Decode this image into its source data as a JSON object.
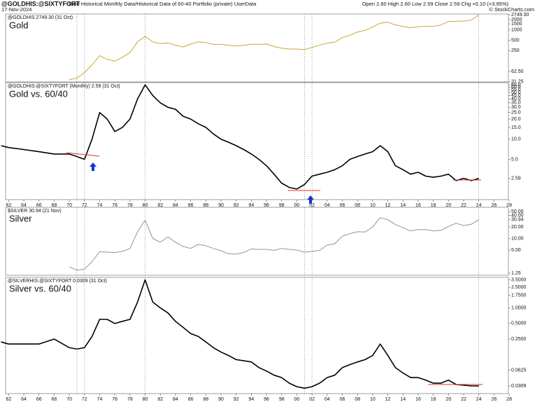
{
  "header": {
    "symbol": "@GOLDHIS:@SIXTYFORT",
    "description": "Gold Historical Monthly Data/Historical Data of 60-40 Portfolio (private) UserData",
    "date": "17-Nov-2024",
    "quote": "Open 2.60 High 2.60 Low 2.59 Close 2.59 Chg +0.10 (+3.95%)",
    "credit": "© StockCharts.com"
  },
  "vlines": [
    1971,
    1972,
    1980,
    2001,
    2002,
    2024
  ],
  "chart_data": [
    {
      "type": "line",
      "legend": "@GOLDHIS 2749.30 (31 Oct)",
      "label": "Gold",
      "log_scale": true,
      "xlim": [
        1961.6,
        2027.9
      ],
      "ylim": [
        31,
        2900
      ],
      "yticks": [
        {
          "value": 2749.3,
          "label": "2749.30"
        },
        2000,
        1500,
        1000,
        500,
        250,
        {
          "value": 62.5,
          "label": "62.50"
        },
        31.25
      ],
      "x": [
        1970,
        1971,
        1972,
        1973,
        1974,
        1975,
        1976,
        1977,
        1978,
        1979,
        1980,
        1981,
        1982,
        1983,
        1984,
        1985,
        1986,
        1987,
        1988,
        1989,
        1990,
        1991,
        1992,
        1993,
        1994,
        1995,
        1996,
        1997,
        1998,
        1999,
        2000,
        2001,
        2002,
        2003,
        2004,
        2005,
        2006,
        2007,
        2008,
        2009,
        2010,
        2011,
        2012,
        2013,
        2014,
        2015,
        2016,
        2017,
        2018,
        2019,
        2020,
        2021,
        2022,
        2023,
        2024
      ],
      "series": [
        {
          "name": "Gold",
          "color": "#c9a43e",
          "values": [
            36,
            40,
            58,
            97,
            180,
            140,
            125,
            160,
            220,
            450,
            650,
            450,
            400,
            420,
            360,
            320,
            390,
            450,
            430,
            380,
            380,
            360,
            340,
            360,
            385,
            385,
            390,
            330,
            295,
            280,
            280,
            270,
            310,
            365,
            410,
            445,
            600,
            700,
            870,
            970,
            1225,
            1570,
            1670,
            1400,
            1265,
            1160,
            1250,
            1260,
            1270,
            1390,
            1770,
            1800,
            1800,
            1940,
            2749.3
          ]
        }
      ]
    },
    {
      "type": "line",
      "legend": "@GOLDHIS:@SIXTYFORT (Monthly) 2.59 (31 Oct)",
      "label": "Gold vs. 60/40",
      "log_scale": true,
      "xlim": [
        1961.6,
        2027.9
      ],
      "ylim": [
        1.25,
        70
      ],
      "yticks": [
        {
          "value": 65,
          "label": "65.0"
        },
        {
          "value": 60,
          "label": "60.0"
        },
        {
          "value": 55,
          "label": "55.0"
        },
        {
          "value": 50,
          "label": "50.0"
        },
        {
          "value": 45,
          "label": "45.0"
        },
        {
          "value": 40,
          "label": "40.0"
        },
        {
          "value": 35,
          "label": "35.0"
        },
        {
          "value": 30,
          "label": "30.0"
        },
        {
          "value": 25,
          "label": "25.0"
        },
        {
          "value": 20,
          "label": "20.0"
        },
        {
          "value": 15,
          "label": "15.0"
        },
        {
          "value": 10,
          "label": "10.0"
        },
        {
          "value": 5,
          "label": "5.0"
        },
        2.59
      ],
      "xticks": [
        {
          "value": 1962,
          "label": "62"
        },
        {
          "value": 1964,
          "label": "64"
        },
        {
          "value": 1966,
          "label": "66"
        },
        {
          "value": 1968,
          "label": "68"
        },
        {
          "value": 1970,
          "label": "70"
        },
        {
          "value": 1972,
          "label": "72"
        },
        {
          "value": 1974,
          "label": "74"
        },
        {
          "value": 1976,
          "label": "76"
        },
        {
          "value": 1978,
          "label": "78"
        },
        {
          "value": 1980,
          "label": "80"
        },
        {
          "value": 1982,
          "label": "82"
        },
        {
          "value": 1984,
          "label": "84"
        },
        {
          "value": 1986,
          "label": "86"
        },
        {
          "value": 1988,
          "label": "88"
        },
        {
          "value": 1990,
          "label": "90"
        },
        {
          "value": 1992,
          "label": "92"
        },
        {
          "value": 1994,
          "label": "94"
        },
        {
          "value": 1996,
          "label": "96"
        },
        {
          "value": 1998,
          "label": "98"
        },
        {
          "value": 2000,
          "label": "00"
        },
        {
          "value": 2002,
          "label": "02"
        },
        {
          "value": 2004,
          "label": "04"
        },
        {
          "value": 2006,
          "label": "06"
        },
        {
          "value": 2008,
          "label": "08"
        },
        {
          "value": 2010,
          "label": "10"
        },
        {
          "value": 2012,
          "label": "12"
        },
        {
          "value": 2014,
          "label": "14"
        },
        {
          "value": 2016,
          "label": "16"
        },
        {
          "value": 2018,
          "label": "18"
        },
        {
          "value": 2020,
          "label": "20"
        },
        {
          "value": 2022,
          "label": "22"
        },
        {
          "value": 2024,
          "label": "24"
        },
        {
          "value": 2026,
          "label": "26"
        },
        {
          "value": 2028,
          "label": "28"
        }
      ],
      "x": [
        1961,
        1962,
        1964,
        1966,
        1968,
        1970,
        1971,
        1972,
        1973,
        1974,
        1975,
        1976,
        1977,
        1978,
        1979,
        1980,
        1981,
        1982,
        1983,
        1984,
        1985,
        1986,
        1987,
        1988,
        1989,
        1990,
        1991,
        1992,
        1993,
        1994,
        1995,
        1996,
        1997,
        1998,
        1999,
        2000,
        2001,
        2002,
        2003,
        2004,
        2005,
        2006,
        2007,
        2008,
        2009,
        2010,
        2011,
        2012,
        2013,
        2014,
        2015,
        2016,
        2017,
        2018,
        2019,
        2020,
        2021,
        2022,
        2023,
        2024
      ],
      "series": [
        {
          "name": "Gold vs. 60/40",
          "color": "#000000",
          "values": [
            8,
            7.5,
            7,
            6.5,
            6,
            6,
            5.5,
            5,
            10,
            25,
            20,
            13,
            15,
            20,
            40,
            65,
            45,
            35,
            30,
            28,
            22,
            20,
            17,
            15,
            12,
            10,
            9,
            8,
            7,
            6,
            5,
            4,
            3,
            2.2,
            1.9,
            1.8,
            2.1,
            2.8,
            3,
            3.2,
            3.5,
            4,
            5,
            5.5,
            6,
            6.5,
            8,
            6.5,
            4,
            3.5,
            3,
            3.2,
            2.8,
            2.7,
            2.8,
            3,
            2.4,
            2.6,
            2.4,
            2.59
          ]
        }
      ]
    },
    {
      "type": "line",
      "legend": "$SILVER 30.94 (21 Nov)",
      "label": "Silver",
      "log_scale": true,
      "xlim": [
        1961.6,
        2027.9
      ],
      "ylim": [
        1.1,
        65
      ],
      "yticks": [
        {
          "value": 50,
          "label": "50.00"
        },
        {
          "value": 40,
          "label": "40.00"
        },
        30.94,
        {
          "value": 20,
          "label": "20.00"
        },
        {
          "value": 10,
          "label": "10.00"
        },
        {
          "value": 5,
          "label": "5.00"
        },
        1.25
      ],
      "x": [
        1970,
        1971,
        1972,
        1973,
        1974,
        1975,
        1976,
        1977,
        1978,
        1979,
        1980,
        1981,
        1982,
        1983,
        1984,
        1985,
        1986,
        1987,
        1988,
        1989,
        1990,
        1991,
        1992,
        1993,
        1994,
        1995,
        1996,
        1997,
        1998,
        1999,
        2000,
        2001,
        2002,
        2003,
        2004,
        2005,
        2006,
        2007,
        2008,
        2009,
        2010,
        2011,
        2012,
        2013,
        2014,
        2015,
        2016,
        2017,
        2018,
        2019,
        2020,
        2021,
        2022,
        2023,
        2024
      ],
      "series": [
        {
          "name": "Silver",
          "color": "#8a979f",
          "values": [
            1.8,
            1.5,
            1.6,
            2.5,
            4.5,
            4.4,
            4.3,
            4.6,
            5.5,
            15,
            30,
            10,
            8,
            11,
            8,
            6.2,
            5.5,
            7,
            6.5,
            5.5,
            4.8,
            4,
            3.9,
            4.3,
            5.3,
            5.2,
            5.2,
            4.9,
            5.5,
            5.2,
            5,
            4.4,
            4.6,
            4.9,
            6.7,
            7.3,
            11.5,
            13.4,
            15,
            14.7,
            20,
            35,
            31,
            23,
            19,
            15.7,
            17,
            17,
            15.7,
            16.2,
            20.5,
            25,
            21.7,
            23.4,
            30.94
          ]
        }
      ]
    },
    {
      "type": "line",
      "legend": "@SILVERHIS:@SIXTYFORT 0.0309 (31 Oct)",
      "label": "Silver vs. 60/40",
      "log_scale": true,
      "xlim": [
        1961.6,
        2027.9
      ],
      "ylim": [
        0.022,
        3.9
      ],
      "yticks": [
        {
          "value": 3.5,
          "label": "3.5000"
        },
        {
          "value": 2.5,
          "label": "2.5000"
        },
        {
          "value": 1.75,
          "label": "1.7500"
        },
        {
          "value": 1,
          "label": "1.0000"
        },
        {
          "value": 0.5,
          "label": "0.5000"
        },
        {
          "value": 0.25,
          "label": "0.2500"
        },
        0.0625,
        0.0309
      ],
      "xticks": [
        {
          "value": 1962,
          "label": "62"
        },
        {
          "value": 1964,
          "label": "64"
        },
        {
          "value": 1966,
          "label": "66"
        },
        {
          "value": 1968,
          "label": "68"
        },
        {
          "value": 1970,
          "label": "70"
        },
        {
          "value": 1972,
          "label": "72"
        },
        {
          "value": 1974,
          "label": "74"
        },
        {
          "value": 1976,
          "label": "76"
        },
        {
          "value": 1978,
          "label": "78"
        },
        {
          "value": 1980,
          "label": "80"
        },
        {
          "value": 1982,
          "label": "82"
        },
        {
          "value": 1984,
          "label": "84"
        },
        {
          "value": 1986,
          "label": "86"
        },
        {
          "value": 1988,
          "label": "88"
        },
        {
          "value": 1990,
          "label": "90"
        },
        {
          "value": 1992,
          "label": "92"
        },
        {
          "value": 1994,
          "label": "94"
        },
        {
          "value": 1996,
          "label": "96"
        },
        {
          "value": 1998,
          "label": "98"
        },
        {
          "value": 2000,
          "label": "00"
        },
        {
          "value": 2002,
          "label": "02"
        },
        {
          "value": 2004,
          "label": "04"
        },
        {
          "value": 2006,
          "label": "06"
        },
        {
          "value": 2008,
          "label": "08"
        },
        {
          "value": 2010,
          "label": "10"
        },
        {
          "value": 2012,
          "label": "12"
        },
        {
          "value": 2014,
          "label": "14"
        },
        {
          "value": 2016,
          "label": "16"
        },
        {
          "value": 2018,
          "label": "18"
        },
        {
          "value": 2020,
          "label": "20"
        },
        {
          "value": 2022,
          "label": "22"
        },
        {
          "value": 2024,
          "label": "24"
        },
        {
          "value": 2026,
          "label": "26"
        },
        {
          "value": 2028,
          "label": "28"
        }
      ],
      "x": [
        1961,
        1962,
        1964,
        1966,
        1968,
        1970,
        1971,
        1972,
        1973,
        1974,
        1975,
        1976,
        1977,
        1978,
        1979,
        1980,
        1981,
        1982,
        1983,
        1984,
        1985,
        1986,
        1987,
        1988,
        1989,
        1990,
        1991,
        1992,
        1993,
        1994,
        1995,
        1996,
        1997,
        1998,
        1999,
        2000,
        2001,
        2002,
        2003,
        2004,
        2005,
        2006,
        2007,
        2008,
        2009,
        2010,
        2011,
        2012,
        2013,
        2014,
        2015,
        2016,
        2017,
        2018,
        2019,
        2020,
        2021,
        2022,
        2023,
        2024
      ],
      "series": [
        {
          "name": "Silver vs. 60/40",
          "color": "#000000",
          "values": [
            0.22,
            0.2,
            0.2,
            0.2,
            0.25,
            0.17,
            0.16,
            0.17,
            0.28,
            0.6,
            0.6,
            0.5,
            0.55,
            0.6,
            1.3,
            3.5,
            1.3,
            1.0,
            0.8,
            0.55,
            0.42,
            0.32,
            0.28,
            0.22,
            0.17,
            0.14,
            0.12,
            0.1,
            0.095,
            0.09,
            0.07,
            0.06,
            0.05,
            0.045,
            0.035,
            0.03,
            0.028,
            0.03,
            0.035,
            0.045,
            0.05,
            0.07,
            0.08,
            0.09,
            0.1,
            0.12,
            0.2,
            0.12,
            0.07,
            0.055,
            0.045,
            0.045,
            0.04,
            0.035,
            0.035,
            0.04,
            0.033,
            0.032,
            0.031,
            0.0309
          ]
        }
      ]
    }
  ]
}
